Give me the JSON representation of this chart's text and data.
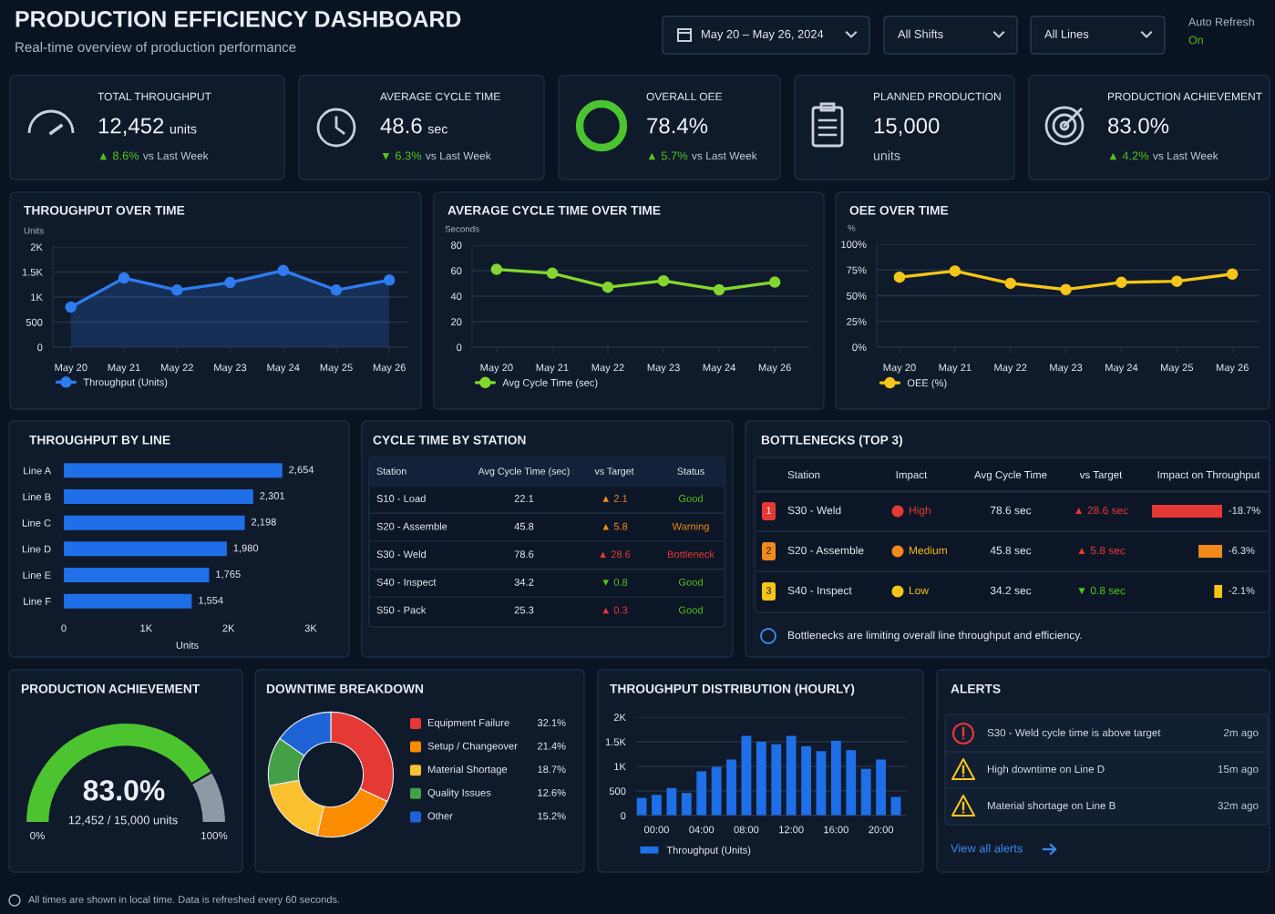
{
  "chart_data": [
    {
      "type": "other",
      "title": "PRODUCTION EFFICIENCY DASHBOARD",
      "subtitle": "Real-time overview of production performance",
      "annotations": [
        "May 20 – May 26, 2024",
        "All Shifts",
        "All Lines",
        "Auto Refresh",
        "On"
      ],
      "colors": [
        "#e9eef5",
        "#e9eef5",
        "#e9eef5",
        "#aeb8c6",
        "#52c41a"
      ]
    },
    {
      "type": "other",
      "title": "TOTAL THROUGHPUT",
      "annotations": [
        "12,452",
        "units",
        "▲ 8.6%",
        "vs Last Week"
      ],
      "colors": [
        "#f2f5f9",
        "#f2f5f9",
        "#52c41a",
        "#c3ccd8"
      ]
    },
    {
      "type": "other",
      "title": "AVERAGE CYCLE TIME",
      "annotations": [
        "48.6",
        "sec",
        "▼ 6.3%",
        "vs Last Week"
      ],
      "colors": [
        "#f2f5f9",
        "#f2f5f9",
        "#52c41a",
        "#c3ccd8"
      ]
    },
    {
      "type": "other",
      "title": "OVERALL OEE",
      "annotations": [
        "78.4%",
        "▲ 5.7%",
        "vs Last Week"
      ],
      "colors": [
        "#f2f5f9",
        "#52c41a",
        "#c3ccd8"
      ]
    },
    {
      "type": "other",
      "title": "PLANNED PRODUCTION",
      "annotations": [
        "15,000",
        "units"
      ],
      "colors": [
        "#f2f5f9",
        "#c3ccd8"
      ]
    },
    {
      "type": "other",
      "title": "PRODUCTION ACHIEVEMENT",
      "annotations": [
        "83.0%",
        "▲ 4.2%",
        "vs Last Week"
      ],
      "colors": [
        "#f2f5f9",
        "#52c41a",
        "#c3ccd8"
      ]
    },
    {
      "type": "line",
      "title": "THROUGHPUT OVER TIME",
      "ylabel": "Units",
      "categories": [
        "May 20",
        "May 21",
        "May 22",
        "May 23",
        "May 24",
        "May 25",
        "May 26"
      ],
      "series": [
        {
          "name": "Throughput (Units)",
          "type": "area",
          "color": "#2f7cf0",
          "values": [
            800,
            1380,
            1140,
            1290,
            1530,
            1140,
            1340
          ]
        }
      ],
      "ylim": [
        0,
        2000
      ],
      "yticks": [
        0,
        500,
        {
          "value": 1000,
          "label": "1K"
        },
        {
          "value": 1500,
          "label": "1.5K"
        },
        {
          "value": 2000,
          "label": "2K"
        }
      ],
      "grid": "y",
      "legend": "bottom",
      "marker": "circle"
    },
    {
      "type": "line",
      "title": "AVERAGE CYCLE TIME OVER TIME",
      "ylabel": "Seconds",
      "categories": [
        "May 20",
        "May 21",
        "May 22",
        "May 23",
        "May 24",
        "May 26"
      ],
      "series": [
        {
          "name": "Avg Cycle Time (sec)",
          "color": "#84d62f",
          "values": [
            61,
            58,
            47,
            52,
            45,
            51
          ]
        }
      ],
      "ylim": [
        0,
        80
      ],
      "yticks": [
        0,
        20,
        40,
        60,
        80
      ],
      "grid": "y",
      "legend": "bottom",
      "marker": "circle"
    },
    {
      "type": "line",
      "title": "OEE OVER TIME",
      "ylabel": "%",
      "categories": [
        "May 20",
        "May 21",
        "May 22",
        "May 23",
        "May 24",
        "May 25",
        "May 26"
      ],
      "series": [
        {
          "name": "OEE (%)",
          "color": "#f5c518",
          "values": [
            68,
            74,
            62,
            56,
            63,
            64,
            71
          ]
        }
      ],
      "ylim": [
        0,
        100
      ],
      "yticks": [
        {
          "value": 0,
          "label": "0%"
        },
        {
          "value": 25,
          "label": "25%"
        },
        {
          "value": 50,
          "label": "50%"
        },
        {
          "value": 75,
          "label": "75%"
        },
        {
          "value": 100,
          "label": "100%"
        }
      ],
      "grid": "y",
      "legend": "bottom",
      "marker": "circle"
    },
    {
      "type": "bar",
      "orientation": "horizontal",
      "title": "THROUGHPUT BY LINE",
      "xlabel": "Units",
      "categories": [
        "Line A",
        "Line B",
        "Line C",
        "Line D",
        "Line E",
        "Line F"
      ],
      "values": [
        2654,
        2301,
        2198,
        1980,
        1765,
        1554
      ],
      "value_labels": [
        "2,654",
        "2,301",
        "2,198",
        "1,980",
        "1,765",
        "1,554"
      ],
      "color": "#1f6fe8",
      "xlim": [
        0,
        3000
      ],
      "xticks": [
        0,
        {
          "value": 1000,
          "label": "1K"
        },
        {
          "value": 2000,
          "label": "2K"
        },
        {
          "value": 3000,
          "label": "3K"
        }
      ]
    },
    {
      "type": "other",
      "title": "CYCLE TIME BY STATION",
      "annotations": [
        "Station",
        "Avg Cycle Time (sec)",
        "vs Target",
        "Status",
        "S10 - Load",
        "22.1",
        "▲ 2.1",
        "Good",
        "S20 - Assemble",
        "45.8",
        "▲ 5.8",
        "Warning",
        "S30 - Weld",
        "78.6",
        "▲ 28.6",
        "Bottleneck",
        "S40 - Inspect",
        "34.2",
        "▼ 0.8",
        "Good",
        "S50 - Pack",
        "25.3",
        "▲ 0.3",
        "Good"
      ],
      "colors": [
        "#e9eef5",
        "#e9eef5",
        "#e9eef5",
        "#e9eef5",
        "#e9eef5",
        "#e9eef5",
        "#f08a1c",
        "#52c41a",
        "#e9eef5",
        "#e9eef5",
        "#f08a1c",
        "#f08a1c",
        "#e9eef5",
        "#e9eef5",
        "#e53935",
        "#e53935",
        "#e9eef5",
        "#e9eef5",
        "#52c41a",
        "#52c41a",
        "#e9eef5",
        "#e9eef5",
        "#e53935",
        "#52c41a"
      ]
    },
    {
      "type": "bar",
      "orientation": "horizontal",
      "title": "BOTTLENECKS (TOP 3)",
      "categories": [
        "S30 - Weld",
        "S20 - Assemble",
        "S40 - Inspect"
      ],
      "series": [
        {
          "values": [
            -18.7,
            -6.3,
            -2.1
          ],
          "value_labels": [
            "-18.7%",
            "-6.3%",
            "-2.1%"
          ],
          "colors": [
            "#e53935",
            "#f08a1c",
            "#f5c518"
          ]
        }
      ],
      "annotations": [
        "Station",
        "Impact",
        "Avg Cycle Time",
        "vs Target",
        "Impact on Throughput",
        "1",
        "High",
        "78.6 sec",
        "▲ 28.6 sec",
        "2",
        "Medium",
        "45.8 sec",
        "▲ 5.8 sec",
        "3",
        "Low",
        "34.2 sec",
        "▼ 0.8 sec",
        "Bottlenecks are limiting overall line throughput and efficiency."
      ],
      "colors": [
        "#e9eef5",
        "#e9eef5",
        "#e9eef5",
        "#e9eef5",
        "#e9eef5",
        "#ffffff",
        "#e53935",
        "#e9eef5",
        "#e53935",
        "#1a1a1a",
        "#f5b914",
        "#e9eef5",
        "#e53935",
        "#1a1a1a",
        "#f5c518",
        "#e9eef5",
        "#52c41a",
        "#e9eef5"
      ]
    },
    {
      "type": "donut",
      "title": "PRODUCTION ACHIEVEMENT",
      "categories": [
        null,
        null
      ],
      "values": [
        83.0,
        17.0
      ],
      "colors": [
        "#4cc430",
        "#8e99a6"
      ],
      "annotations": [
        "83.0%",
        "12,452 / 15,000 units",
        "0%",
        "100%"
      ]
    },
    {
      "type": "donut",
      "title": "DOWNTIME BREAKDOWN",
      "categories": [
        "Equipment Failure",
        "Setup / Changeover",
        "Material Shortage",
        "Quality Issues",
        "Other"
      ],
      "values": [
        32.1,
        21.4,
        18.7,
        12.6,
        15.2
      ],
      "value_labels": [
        "32.1%",
        "21.4%",
        "18.7%",
        "12.6%",
        "15.2%"
      ],
      "colors": [
        "#e53935",
        "#fb8c00",
        "#fbc02d",
        "#43a047",
        "#1e63d6"
      ],
      "legend": "right"
    },
    {
      "type": "bar",
      "title": "THROUGHPUT DISTRIBUTION (HOURLY)",
      "categories": [
        null,
        "00:00",
        null,
        null,
        "04:00",
        null,
        null,
        "08:00",
        null,
        null,
        "12:00",
        null,
        null,
        "16:00",
        null,
        null,
        "20:00",
        null
      ],
      "series": [
        {
          "name": "Throughput (Units)",
          "color": "#1f6fe8",
          "values": [
            360,
            420,
            560,
            460,
            900,
            990,
            1140,
            1620,
            1500,
            1450,
            1620,
            1410,
            1310,
            1520,
            1330,
            950,
            1140,
            380
          ]
        }
      ],
      "ylim": [
        0,
        2000
      ],
      "yticks": [
        0,
        500,
        {
          "value": 1000,
          "label": "1K"
        },
        {
          "value": 1500,
          "label": "1.5K"
        },
        {
          "value": 2000,
          "label": "2K"
        }
      ],
      "grid": "y",
      "legend": "bottom"
    },
    {
      "type": "other",
      "title": "ALERTS",
      "annotations": [
        "S30 - Weld cycle time is above target",
        "2m ago",
        "High downtime on Line D",
        "15m ago",
        "Material shortage on Line B",
        "32m ago",
        "View all alerts"
      ],
      "colors": [
        "#d5dce6",
        "#c3ccd8",
        "#d5dce6",
        "#c3ccd8",
        "#d5dce6",
        "#c3ccd8",
        "#3d8bf2"
      ]
    },
    {
      "type": "other",
      "annotations": [
        "All times are shown in local time. Data is refreshed every 60 seconds."
      ],
      "colors": [
        "#aeb8c6"
      ]
    }
  ]
}
